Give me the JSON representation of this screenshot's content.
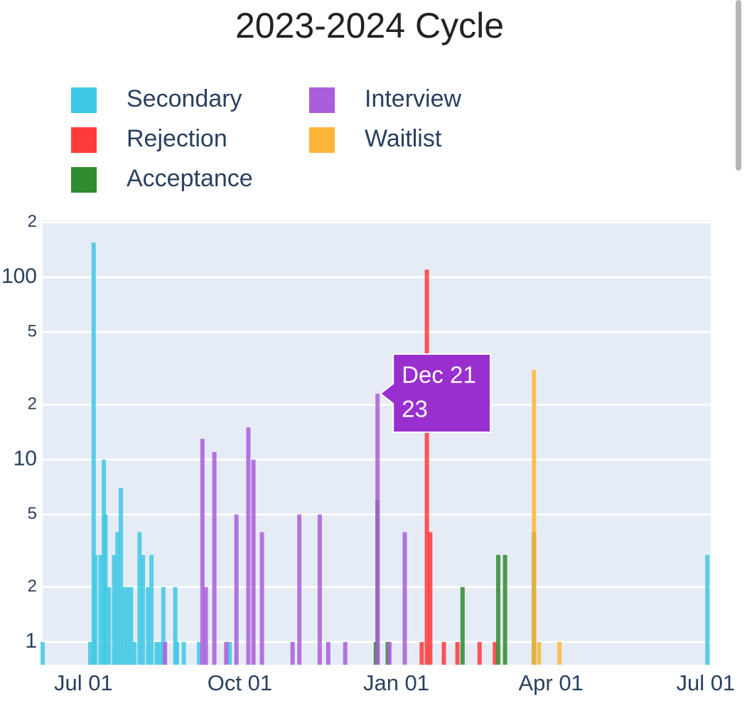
{
  "chart_data": {
    "type": "bar",
    "title": "2023-2024 Cycle",
    "log_y": true,
    "grid": true,
    "legend": "top-left",
    "xlim": [
      -24,
      369
    ],
    "xticks": [
      {
        "value": 0,
        "label": "Jul 01"
      },
      {
        "value": 92,
        "label": "Oct 01"
      },
      {
        "value": 184,
        "label": "Jan 01"
      },
      {
        "value": 275,
        "label": "Apr 01"
      },
      {
        "value": 366,
        "label": "Jul 01"
      }
    ],
    "ylim": [
      0.75,
      205
    ],
    "yticks": [
      1,
      2,
      5,
      10,
      {
        "value": 20,
        "label": "2"
      },
      {
        "value": 50,
        "label": "5"
      },
      100,
      {
        "value": 200,
        "label": "2"
      }
    ],
    "series": [
      {
        "name": "Secondary",
        "color": "#3ec8e4",
        "x": [
          -24,
          4,
          6,
          7,
          10,
          12,
          13,
          15,
          18,
          20,
          22,
          24,
          26,
          28,
          30,
          33,
          35,
          38,
          40,
          43,
          45,
          47,
          54,
          55,
          59,
          68,
          86,
          367
        ],
        "values": [
          1,
          1,
          155,
          3,
          3,
          10,
          5,
          2,
          3,
          4,
          7,
          2,
          2,
          2,
          1,
          4,
          3,
          2,
          3,
          1,
          1,
          2,
          2,
          1,
          1,
          1,
          1,
          3
        ]
      },
      {
        "name": "Rejection",
        "color": "#ff3a3a",
        "x": [
          199,
          202,
          204,
          212,
          220,
          233,
          242
        ],
        "values": [
          1,
          110,
          4,
          1,
          1,
          1,
          1
        ]
      },
      {
        "name": "Acceptance",
        "color": "#2e8b2e",
        "x": [
          172,
          173,
          179,
          223,
          244,
          248,
          265
        ],
        "values": [
          1,
          6,
          1,
          2,
          3,
          3,
          4
        ]
      },
      {
        "name": "Interview",
        "color": "#ab5ddb",
        "x": [
          48,
          70,
          72,
          77,
          84,
          90,
          97,
          100,
          105,
          123,
          127,
          139,
          144,
          154,
          173,
          180,
          189
        ],
        "values": [
          1,
          13,
          2,
          11,
          1,
          5,
          15,
          10,
          4,
          1,
          5,
          5,
          1,
          1,
          23,
          1,
          4
        ]
      },
      {
        "name": "Waitlist",
        "color": "#ffb638",
        "x": [
          265,
          268,
          280
        ],
        "values": [
          31,
          1,
          1
        ]
      }
    ],
    "tooltip": {
      "label": "Dec 21",
      "value": 23
    }
  }
}
